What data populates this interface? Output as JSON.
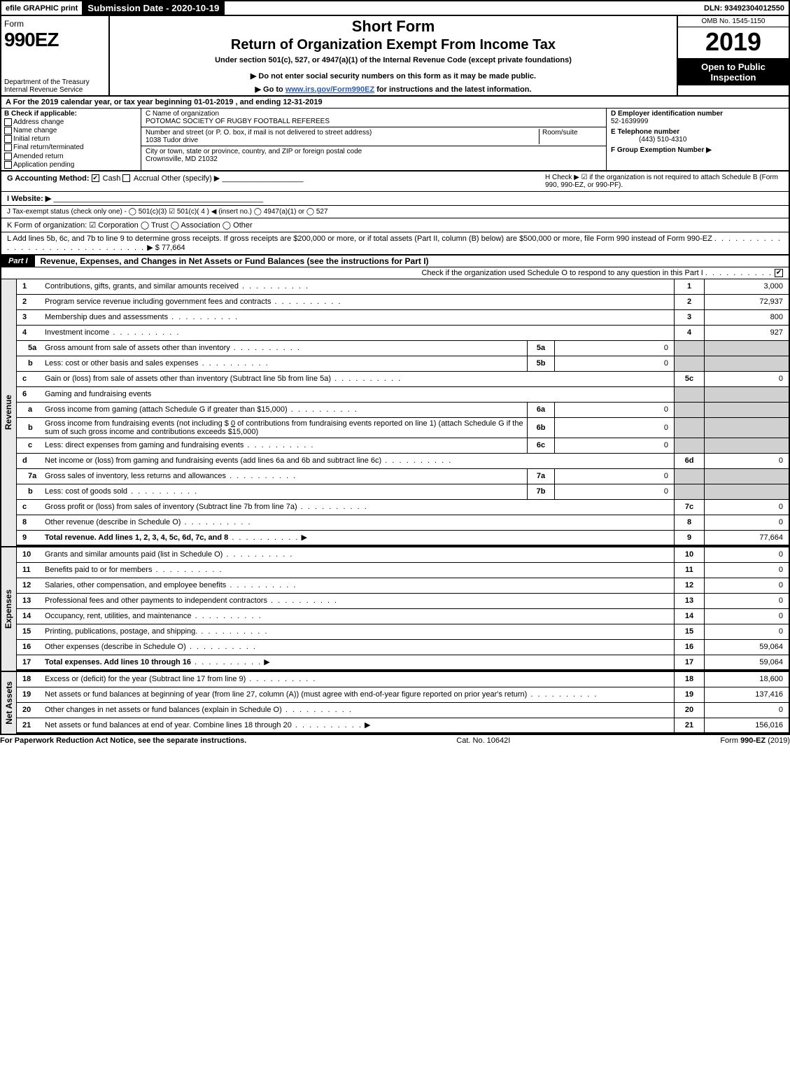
{
  "top": {
    "efile": "efile GRAPHIC print",
    "submission_label": "Submission Date - 2020-10-19",
    "dln_label": "DLN: 93492304012550"
  },
  "header": {
    "form_word": "Form",
    "form_number": "990EZ",
    "dept": "Department of the Treasury",
    "irs": "Internal Revenue Service",
    "short_form": "Short Form",
    "return_title": "Return of Organization Exempt From Income Tax",
    "under_section": "Under section 501(c), 527, or 4947(a)(1) of the Internal Revenue Code (except private foundations)",
    "do_not_enter": "▶ Do not enter social security numbers on this form as it may be made public.",
    "goto_prefix": "▶ Go to ",
    "goto_link": "www.irs.gov/Form990EZ",
    "goto_suffix": " for instructions and the latest information.",
    "omb": "OMB No. 1545-1150",
    "year": "2019",
    "open_public": "Open to Public Inspection"
  },
  "lineA": "A  For the 2019 calendar year, or tax year beginning 01-01-2019 , and ending 12-31-2019",
  "colB": {
    "title": "B Check if applicable:",
    "items": [
      "Address change",
      "Name change",
      "Initial return",
      "Final return/terminated",
      "Amended return",
      "Application pending"
    ]
  },
  "colC": {
    "name_label": "C Name of organization",
    "name": "POTOMAC SOCIETY OF RUGBY FOOTBALL REFEREES",
    "street_label": "Number and street (or P. O. box, if mail is not delivered to street address)",
    "room_label": "Room/suite",
    "street": "1038 Tudor drive",
    "city_label": "City or town, state or province, country, and ZIP or foreign postal code",
    "city": "Crownsville, MD  21032"
  },
  "colD": {
    "d_label": "D Employer identification number",
    "d_value": "52-1639999",
    "e_label": "E Telephone number",
    "e_value": "(443) 510-4310",
    "f_label": "F Group Exemption Number  ▶"
  },
  "lineG": {
    "label": "G Accounting Method:",
    "cash": "Cash",
    "accrual": "Accrual",
    "other": "Other (specify) ▶"
  },
  "lineH": "H  Check ▶  ☑  if the organization is not required to attach Schedule B (Form 990, 990-EZ, or 990-PF).",
  "lineI": "I Website: ▶",
  "lineJ": "J Tax-exempt status (check only one) -  ◯ 501(c)(3)  ☑ 501(c)( 4 ) ◀ (insert no.)  ◯ 4947(a)(1) or  ◯ 527",
  "lineK": "K Form of organization:   ☑ Corporation   ◯ Trust   ◯ Association   ◯ Other",
  "lineL": {
    "text": "L Add lines 5b, 6c, and 7b to line 9 to determine gross receipts. If gross receipts are $200,000 or more, or if total assets (Part II, column (B) below) are $500,000 or more, file Form 990 instead of Form 990-EZ",
    "arrow": "▶",
    "amount": "$ 77,664"
  },
  "part1": {
    "label": "Part I",
    "title": "Revenue, Expenses, and Changes in Net Assets or Fund Balances (see the instructions for Part I)",
    "check_text": "Check if the organization used Schedule O to respond to any question in this Part I"
  },
  "revenue": {
    "side": "Revenue",
    "lines": [
      {
        "n": "1",
        "desc": "Contributions, gifts, grants, and similar amounts received",
        "final_n": "1",
        "final_v": "3,000"
      },
      {
        "n": "2",
        "desc": "Program service revenue including government fees and contracts",
        "final_n": "2",
        "final_v": "72,937"
      },
      {
        "n": "3",
        "desc": "Membership dues and assessments",
        "final_n": "3",
        "final_v": "800"
      },
      {
        "n": "4",
        "desc": "Investment income",
        "final_n": "4",
        "final_v": "927"
      }
    ],
    "line5a": {
      "n": "5a",
      "desc": "Gross amount from sale of assets other than inventory",
      "box": "5a",
      "val": "0"
    },
    "line5b": {
      "n": "b",
      "desc": "Less: cost or other basis and sales expenses",
      "box": "5b",
      "val": "0"
    },
    "line5c": {
      "n": "c",
      "desc": "Gain or (loss) from sale of assets other than inventory (Subtract line 5b from line 5a)",
      "final_n": "5c",
      "final_v": "0"
    },
    "line6": {
      "n": "6",
      "desc": "Gaming and fundraising events"
    },
    "line6a": {
      "n": "a",
      "desc": "Gross income from gaming (attach Schedule G if greater than $15,000)",
      "box": "6a",
      "val": "0"
    },
    "line6b": {
      "n": "b",
      "desc_pre": "Gross income from fundraising events (not including $ ",
      "desc_mid": "0",
      "desc_post": "  of contributions from fundraising events reported on line 1) (attach Schedule G if the sum of such gross income and contributions exceeds $15,000)",
      "box": "6b",
      "val": "0"
    },
    "line6c": {
      "n": "c",
      "desc": "Less: direct expenses from gaming and fundraising events",
      "box": "6c",
      "val": "0"
    },
    "line6d": {
      "n": "d",
      "desc": "Net income or (loss) from gaming and fundraising events (add lines 6a and 6b and subtract line 6c)",
      "final_n": "6d",
      "final_v": "0"
    },
    "line7a": {
      "n": "7a",
      "desc": "Gross sales of inventory, less returns and allowances",
      "box": "7a",
      "val": "0"
    },
    "line7b": {
      "n": "b",
      "desc": "Less: cost of goods sold",
      "box": "7b",
      "val": "0"
    },
    "line7c": {
      "n": "c",
      "desc": "Gross profit or (loss) from sales of inventory (Subtract line 7b from line 7a)",
      "final_n": "7c",
      "final_v": "0"
    },
    "line8": {
      "n": "8",
      "desc": "Other revenue (describe in Schedule O)",
      "final_n": "8",
      "final_v": "0"
    },
    "line9": {
      "n": "9",
      "desc": "Total revenue. Add lines 1, 2, 3, 4, 5c, 6d, 7c, and 8",
      "arrow": "▶",
      "final_n": "9",
      "final_v": "77,664"
    }
  },
  "expenses": {
    "side": "Expenses",
    "lines": [
      {
        "n": "10",
        "desc": "Grants and similar amounts paid (list in Schedule O)",
        "final_n": "10",
        "final_v": "0"
      },
      {
        "n": "11",
        "desc": "Benefits paid to or for members",
        "final_n": "11",
        "final_v": "0"
      },
      {
        "n": "12",
        "desc": "Salaries, other compensation, and employee benefits",
        "final_n": "12",
        "final_v": "0"
      },
      {
        "n": "13",
        "desc": "Professional fees and other payments to independent contractors",
        "final_n": "13",
        "final_v": "0"
      },
      {
        "n": "14",
        "desc": "Occupancy, rent, utilities, and maintenance",
        "final_n": "14",
        "final_v": "0"
      },
      {
        "n": "15",
        "desc": "Printing, publications, postage, and shipping.",
        "final_n": "15",
        "final_v": "0"
      },
      {
        "n": "16",
        "desc": "Other expenses (describe in Schedule O)",
        "final_n": "16",
        "final_v": "59,064"
      },
      {
        "n": "17",
        "desc": "Total expenses. Add lines 10 through 16",
        "arrow": "▶",
        "final_n": "17",
        "final_v": "59,064",
        "bold": true
      }
    ]
  },
  "netassets": {
    "side": "Net Assets",
    "lines": [
      {
        "n": "18",
        "desc": "Excess or (deficit) for the year (Subtract line 17 from line 9)",
        "final_n": "18",
        "final_v": "18,600"
      },
      {
        "n": "19",
        "desc": "Net assets or fund balances at beginning of year (from line 27, column (A)) (must agree with end-of-year figure reported on prior year's return)",
        "final_n": "19",
        "final_v": "137,416"
      },
      {
        "n": "20",
        "desc": "Other changes in net assets or fund balances (explain in Schedule O)",
        "final_n": "20",
        "final_v": "0"
      },
      {
        "n": "21",
        "desc": "Net assets or fund balances at end of year. Combine lines 18 through 20",
        "arrow": "▶",
        "final_n": "21",
        "final_v": "156,016"
      }
    ]
  },
  "footer": {
    "left": "For Paperwork Reduction Act Notice, see the separate instructions.",
    "center": "Cat. No. 10642I",
    "right": "Form 990-EZ (2019)"
  },
  "colors": {
    "black": "#000000",
    "white": "#ffffff",
    "grey_side": "#e8e8e8",
    "grey_cell": "#d0d0d0",
    "link": "#2a5db0"
  }
}
